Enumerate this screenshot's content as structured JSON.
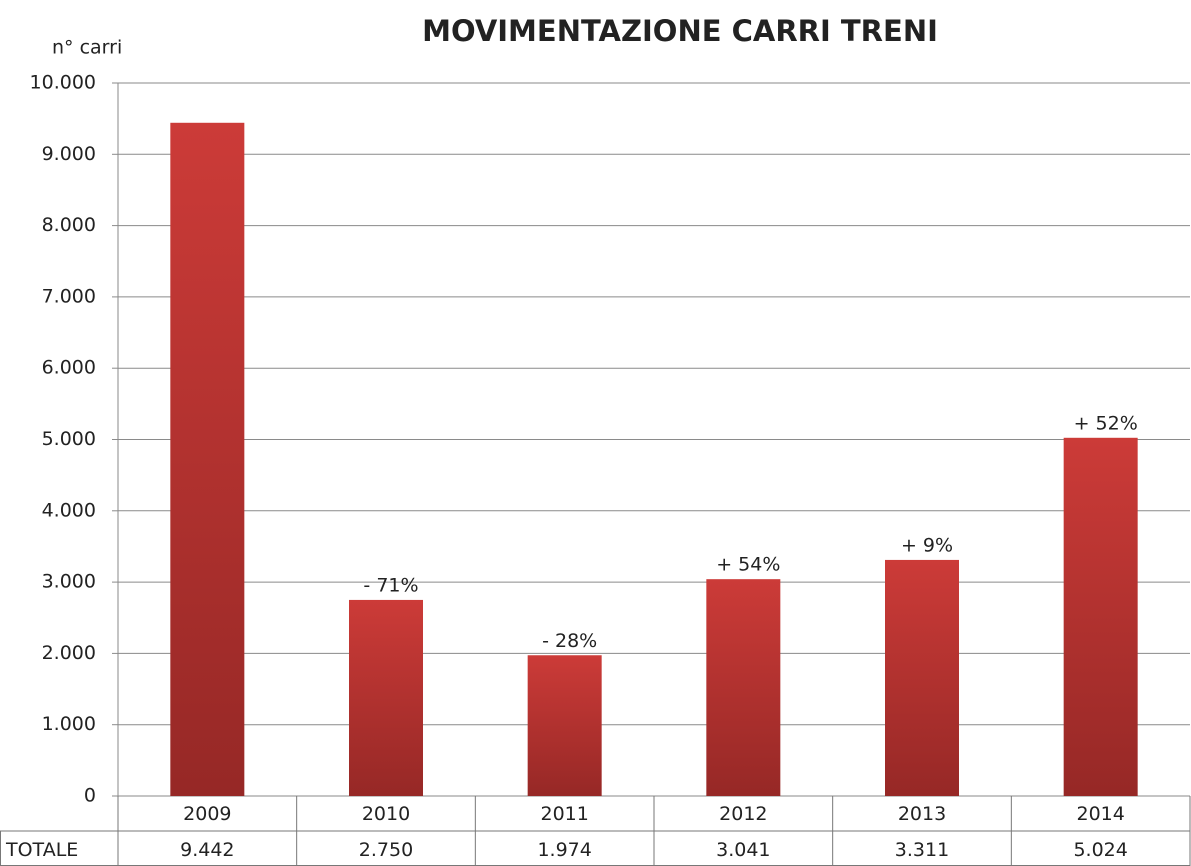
{
  "chart_data": {
    "type": "bar",
    "title": "MOVIMENTAZIONE CARRI TRENI",
    "y_axis_label": "n° carri",
    "categories": [
      "2009",
      "2010",
      "2011",
      "2012",
      "2013",
      "2014"
    ],
    "values": [
      9442,
      2750,
      1974,
      3041,
      3311,
      5024
    ],
    "value_labels": [
      "9.442",
      "2.750",
      "1.974",
      "3.041",
      "3.311",
      "5.024"
    ],
    "table_row_label": "TOTALE",
    "annotations": [
      null,
      "- 71%",
      "- 28%",
      "+ 54%",
      "+ 9%",
      "+ 52%"
    ],
    "color": "#cc3b38",
    "ylim": [
      0,
      10000
    ],
    "yticks": [
      0,
      {
        "value": 1000,
        "label": "1.000"
      },
      {
        "value": 2000,
        "label": "2.000"
      },
      {
        "value": 3000,
        "label": "3.000"
      },
      {
        "value": 4000,
        "label": "4.000"
      },
      {
        "value": 5000,
        "label": "5.000"
      },
      {
        "value": 6000,
        "label": "6.000"
      },
      {
        "value": 7000,
        "label": "7.000"
      },
      {
        "value": 8000,
        "label": "8.000"
      },
      {
        "value": 9000,
        "label": "9.000"
      },
      {
        "value": 10000,
        "label": "10.000"
      }
    ],
    "grid": true
  }
}
